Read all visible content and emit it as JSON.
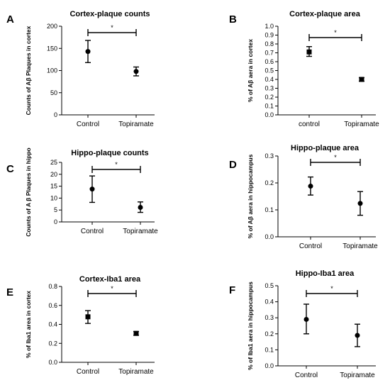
{
  "panels": [
    {
      "letter": "A",
      "title": "Cortex-plaque counts",
      "chart_data": {
        "type": "scatter",
        "categories": [
          "Control",
          "Topiramate"
        ],
        "values": [
          143,
          98
        ],
        "errors": [
          [
            118,
            168
          ],
          [
            88,
            108
          ]
        ],
        "ylabel": "Counts of Aβ Plaques in cortex",
        "ylim": [
          0,
          200
        ],
        "yticks": [
          "0",
          "50",
          "100",
          "150",
          "200"
        ],
        "significance": "*",
        "marker": "circle"
      }
    },
    {
      "letter": "B",
      "title": "Cortex-plaque area",
      "chart_data": {
        "type": "scatter",
        "categories": [
          "control",
          "Topiramate"
        ],
        "values": [
          0.71,
          0.4
        ],
        "errors": [
          [
            0.66,
            0.77
          ],
          [
            0.38,
            0.42
          ]
        ],
        "ylabel": "% of Aβ aera in cortex",
        "ylim": [
          0,
          1.0
        ],
        "yticks": [
          "0.0",
          "0.1",
          "0.2",
          "0.3",
          "0.4",
          "0.5",
          "0.6",
          "0.7",
          "0.8",
          "0.9",
          "1.0"
        ],
        "significance": "*",
        "marker": "square"
      }
    },
    {
      "letter": "C",
      "title": "Hippo-plaque counts",
      "chart_data": {
        "type": "scatter",
        "categories": [
          "Control",
          "Topiramate"
        ],
        "values": [
          13.8,
          6.1
        ],
        "errors": [
          [
            8.2,
            19.3
          ],
          [
            4.0,
            8.4
          ]
        ],
        "ylabel": "Counts of A β Plaques in hippo",
        "ylim": [
          0,
          25
        ],
        "yticks": [
          "0",
          "5",
          "10",
          "15",
          "20",
          "25"
        ],
        "significance": "*",
        "marker": "circle"
      }
    },
    {
      "letter": "D",
      "title": "Hippo-plaque area",
      "chart_data": {
        "type": "scatter",
        "categories": [
          "Control",
          "Topiramate"
        ],
        "values": [
          0.188,
          0.124
        ],
        "errors": [
          [
            0.155,
            0.222
          ],
          [
            0.08,
            0.168
          ]
        ],
        "ylabel": "% of Aβ aera in hippocampus",
        "ylim": [
          0,
          0.3
        ],
        "yticks": [
          "0.0",
          "0.1",
          "0.2",
          "0.3"
        ],
        "significance": "*",
        "marker": "circle"
      }
    },
    {
      "letter": "E",
      "title": "Cortex-Iba1 area",
      "chart_data": {
        "type": "scatter",
        "categories": [
          "Control",
          "Topiramate"
        ],
        "values": [
          0.48,
          0.305
        ],
        "errors": [
          [
            0.41,
            0.545
          ],
          [
            0.285,
            0.325
          ]
        ],
        "ylabel": "% of Iba1 area in cortex",
        "ylim": [
          0,
          0.8
        ],
        "yticks": [
          "0.0",
          "0.2",
          "0.4",
          "0.6",
          "0.8"
        ],
        "significance": "*",
        "marker": "square"
      }
    },
    {
      "letter": "F",
      "title": "Hippo-Iba1 area",
      "chart_data": {
        "type": "scatter",
        "categories": [
          "Control",
          "Topiramate"
        ],
        "values": [
          0.29,
          0.19
        ],
        "errors": [
          [
            0.2,
            0.385
          ],
          [
            0.12,
            0.26
          ]
        ],
        "ylabel": "% of Iba1 aera in hippocampus",
        "ylim": [
          0,
          0.5
        ],
        "yticks": [
          "0.0",
          "0.1",
          "0.2",
          "0.3",
          "0.4",
          "0.5"
        ],
        "significance": "*",
        "marker": "circle"
      }
    }
  ]
}
